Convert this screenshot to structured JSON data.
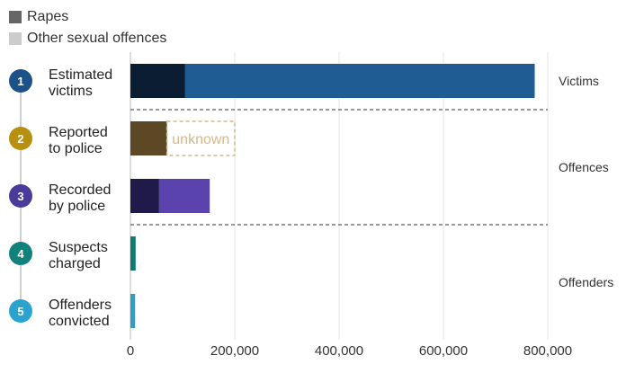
{
  "legend": [
    {
      "label": "Rapes",
      "color": "#666666"
    },
    {
      "label": "Other sexual offences",
      "color": "#cccccc"
    }
  ],
  "chart_data": {
    "type": "bar",
    "orientation": "horizontal",
    "stacked": true,
    "categories": [
      [
        "Estimated",
        "victims"
      ],
      [
        "Reported",
        "to police"
      ],
      [
        "Recorded",
        "by police"
      ],
      [
        "Suspects",
        "charged"
      ],
      [
        "Offenders",
        "convicted"
      ]
    ],
    "stage_numbers": [
      "1",
      "2",
      "3",
      "4",
      "5"
    ],
    "stage_colors": [
      "#1d5288",
      "#b8900e",
      "#4a3a9a",
      "#11817b",
      "#2aa3cf"
    ],
    "series": [
      {
        "name": "Rapes",
        "values": [
          105000,
          70000,
          55000,
          0,
          0
        ],
        "colors": [
          "#0b1d33",
          "#5c4824",
          "#1f1a4a",
          "#0d7a73",
          "#2ba0c4"
        ]
      },
      {
        "name": "Other sexual offences",
        "values": [
          670000,
          0,
          97000,
          10000,
          9000
        ],
        "colors": [
          "#1f5c93",
          "#5c4824",
          "#5a43ad",
          "#0d7a73",
          "#2ba0c4"
        ]
      }
    ],
    "unknown": {
      "category_index": 1,
      "start": 70000,
      "end": 200000,
      "label": "unknown",
      "color": "#d4b98a"
    },
    "xlim": [
      0,
      800000
    ],
    "xticks": [
      0,
      200000,
      400000,
      600000,
      800000
    ],
    "xtick_labels": [
      "0",
      "200,000",
      "400,000",
      "600,000",
      "800,000"
    ],
    "groups": [
      {
        "label": "Victims",
        "categories": [
          0
        ]
      },
      {
        "label": "Offences",
        "categories": [
          1,
          2
        ]
      },
      {
        "label": "Offenders",
        "categories": [
          3,
          4
        ]
      }
    ],
    "separators_after": [
      0,
      2
    ],
    "grid": true
  }
}
